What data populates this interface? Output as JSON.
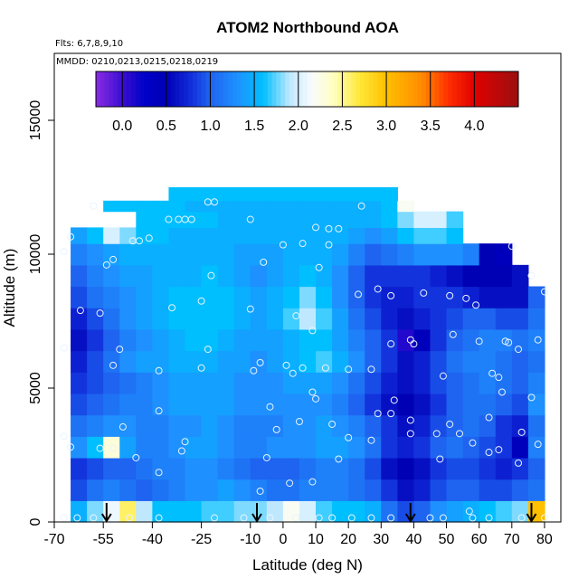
{
  "chart_data": {
    "type": "heatmap",
    "title": "ATOM2 Northbound AOA",
    "flights_label": "Flts: 6,7,8,9,10",
    "dates_label": "MMDD: 0210,0213,0215,0218,0219",
    "xlabel": "Latitude (deg N)",
    "ylabel": "Altitude (m)",
    "xlim": [
      -70,
      85
    ],
    "ylim": [
      0,
      17500
    ],
    "x_ticks": [
      -70,
      -55,
      -40,
      -25,
      -10,
      0,
      10,
      20,
      30,
      40,
      50,
      60,
      70,
      80
    ],
    "x_tick_labels": [
      "-70",
      "-55",
      "-40",
      "-25",
      "-10",
      "0",
      "10",
      "20",
      "30",
      "40",
      "50",
      "60",
      "70",
      "80"
    ],
    "y_ticks": [
      0,
      5000,
      10000,
      15000
    ],
    "y_tick_labels": [
      "0",
      "5000",
      "10000",
      "15000"
    ],
    "colorbar": {
      "min": -0.3,
      "max": 4.5,
      "ticks": [
        0.0,
        0.5,
        1.0,
        1.5,
        2.0,
        2.5,
        3.0,
        3.5,
        4.0
      ],
      "tick_labels": [
        "0.0",
        "0.5",
        "1.0",
        "1.5",
        "2.0",
        "2.5",
        "3.0",
        "3.5",
        "4.0"
      ],
      "stops": [
        {
          "v": -0.3,
          "color": "#8a2be2"
        },
        {
          "v": 0.0,
          "color": "#3a0fd0"
        },
        {
          "v": 0.25,
          "color": "#0000c8"
        },
        {
          "v": 0.5,
          "color": "#0000b4"
        },
        {
          "v": 0.75,
          "color": "#1028d8"
        },
        {
          "v": 1.0,
          "color": "#1e64f0"
        },
        {
          "v": 1.3,
          "color": "#1e90ff"
        },
        {
          "v": 1.6,
          "color": "#00bfff"
        },
        {
          "v": 1.9,
          "color": "#bfe8ff"
        },
        {
          "v": 2.15,
          "color": "#f8fbff"
        },
        {
          "v": 2.4,
          "color": "#ffffc0"
        },
        {
          "v": 2.7,
          "color": "#ffe838"
        },
        {
          "v": 3.0,
          "color": "#ffc000"
        },
        {
          "v": 3.4,
          "color": "#ff8c00"
        },
        {
          "v": 3.7,
          "color": "#ff3000"
        },
        {
          "v": 4.0,
          "color": "#e00000"
        },
        {
          "v": 4.5,
          "color": "#9a1010"
        }
      ]
    },
    "field": {
      "x_edges": [
        -65,
        -60,
        -55,
        -50,
        -45,
        -40,
        -35,
        -30,
        -25,
        -20,
        -15,
        -10,
        -5,
        0,
        5,
        10,
        15,
        20,
        25,
        30,
        35,
        40,
        45,
        50,
        55,
        60,
        65,
        70,
        75,
        80
      ],
      "rows": [
        {
          "y0": 0,
          "y1": 800,
          "v": [
            1.5,
            1.8,
            2.1,
            2.6,
            1.9,
            1.6,
            1.6,
            1.6,
            1.7,
            1.7,
            1.8,
            1.8,
            1.9,
            2.2,
            2.0,
            1.7,
            1.6,
            1.6,
            1.5,
            1.1,
            0.9,
            1.0,
            1.3,
            1.4,
            1.5,
            1.6,
            1.7,
            1.8,
            3.0
          ]
        },
        {
          "y0": 800,
          "y1": 1600,
          "v": [
            0.9,
            1.1,
            1.2,
            1.1,
            1.0,
            1.1,
            1.2,
            1.3,
            1.3,
            1.4,
            1.3,
            1.2,
            1.1,
            1.1,
            1.2,
            1.2,
            1.2,
            1.1,
            1.0,
            0.8,
            0.6,
            0.7,
            0.9,
            1.0,
            1.0,
            0.9,
            0.9,
            1.0,
            1.1
          ]
        },
        {
          "y0": 1600,
          "y1": 2400,
          "v": [
            0.8,
            0.9,
            1.0,
            1.0,
            1.1,
            1.2,
            1.2,
            1.3,
            1.3,
            1.2,
            1.1,
            1.0,
            1.0,
            1.0,
            1.1,
            1.2,
            1.2,
            1.1,
            0.9,
            0.6,
            0.5,
            0.6,
            0.8,
            0.9,
            0.9,
            0.8,
            0.7,
            0.8,
            1.0
          ]
        },
        {
          "y0": 2400,
          "y1": 3200,
          "v": [
            1.3,
            1.6,
            2.3,
            1.4,
            1.2,
            1.2,
            1.3,
            1.4,
            1.4,
            1.3,
            1.2,
            1.2,
            1.3,
            1.3,
            1.3,
            1.4,
            1.4,
            1.3,
            1.1,
            0.8,
            0.7,
            0.8,
            1.0,
            1.1,
            1.0,
            0.9,
            0.8,
            0.4,
            1.2
          ]
        },
        {
          "y0": 3200,
          "y1": 4000,
          "v": [
            1.1,
            1.2,
            1.3,
            1.3,
            1.2,
            1.2,
            1.3,
            1.3,
            1.4,
            1.3,
            1.2,
            1.2,
            1.2,
            1.3,
            1.3,
            1.4,
            1.3,
            1.2,
            1.0,
            0.8,
            0.6,
            0.7,
            0.9,
            1.0,
            1.1,
            1.0,
            0.8,
            0.7,
            1.1
          ]
        },
        {
          "y0": 4000,
          "y1": 4800,
          "v": [
            0.9,
            1.0,
            1.1,
            1.2,
            1.2,
            1.3,
            1.4,
            1.4,
            1.4,
            1.4,
            1.3,
            1.3,
            1.3,
            1.3,
            1.3,
            1.3,
            1.2,
            1.0,
            0.8,
            0.6,
            0.5,
            0.6,
            0.8,
            1.0,
            1.1,
            1.1,
            1.0,
            0.9,
            1.3
          ]
        },
        {
          "y0": 4800,
          "y1": 5600,
          "v": [
            0.8,
            0.9,
            1.0,
            1.1,
            1.2,
            1.3,
            1.4,
            1.4,
            1.4,
            1.4,
            1.3,
            1.3,
            1.3,
            1.4,
            1.4,
            1.4,
            1.3,
            1.1,
            0.9,
            0.7,
            0.6,
            0.7,
            0.9,
            1.0,
            1.1,
            1.2,
            1.1,
            1.0,
            1.2
          ]
        },
        {
          "y0": 5600,
          "y1": 6400,
          "v": [
            0.7,
            0.9,
            1.1,
            1.3,
            1.4,
            1.4,
            1.5,
            1.5,
            1.5,
            1.4,
            1.4,
            1.3,
            1.4,
            1.5,
            1.6,
            1.7,
            1.5,
            1.3,
            1.0,
            0.8,
            0.6,
            0.7,
            0.9,
            1.1,
            1.2,
            1.2,
            1.1,
            1.0,
            1.1
          ]
        },
        {
          "y0": 6400,
          "y1": 7200,
          "v": [
            0.6,
            0.8,
            1.0,
            1.2,
            1.3,
            1.4,
            1.5,
            1.6,
            1.6,
            1.5,
            1.4,
            1.4,
            1.4,
            1.5,
            1.6,
            1.6,
            1.4,
            1.2,
            1.0,
            0.8,
            0.1,
            0.4,
            0.8,
            1.0,
            1.1,
            1.2,
            1.2,
            1.1,
            1.2
          ]
        },
        {
          "y0": 7200,
          "y1": 8000,
          "v": [
            0.7,
            0.9,
            1.1,
            1.3,
            1.4,
            1.5,
            1.6,
            1.6,
            1.6,
            1.6,
            1.5,
            1.4,
            1.5,
            1.7,
            1.9,
            1.7,
            1.4,
            1.1,
            0.9,
            0.7,
            0.6,
            0.7,
            0.8,
            0.9,
            1.0,
            1.0,
            0.9,
            0.9,
            1.1
          ]
        },
        {
          "y0": 8000,
          "y1": 8800,
          "v": [
            0.9,
            1.1,
            1.2,
            1.3,
            1.4,
            1.5,
            1.6,
            1.6,
            1.6,
            1.6,
            1.5,
            1.4,
            1.5,
            1.6,
            1.8,
            1.6,
            1.3,
            1.0,
            0.8,
            0.7,
            0.7,
            0.8,
            0.8,
            0.8,
            0.7,
            0.6,
            0.6,
            0.6,
            1.0
          ]
        },
        {
          "y0": 8800,
          "y1": 9600,
          "v": [
            1.0,
            1.2,
            1.3,
            1.4,
            1.4,
            1.5,
            1.5,
            1.5,
            1.6,
            1.5,
            1.4,
            1.3,
            1.4,
            1.5,
            1.6,
            1.5,
            1.3,
            1.0,
            0.8,
            0.8,
            0.8,
            0.8,
            0.7,
            0.6,
            0.5,
            0.5,
            0.5,
            0.6,
            null
          ]
        },
        {
          "y0": 9600,
          "y1": 10400,
          "v": [
            1.2,
            1.3,
            1.4,
            1.5,
            1.5,
            1.5,
            1.5,
            1.5,
            1.5,
            1.5,
            1.4,
            1.4,
            1.4,
            1.5,
            1.5,
            1.5,
            1.4,
            1.2,
            1.0,
            1.1,
            1.2,
            1.3,
            1.3,
            1.3,
            1.2,
            0.5,
            0.4,
            null,
            null
          ]
        },
        {
          "y0": 10400,
          "y1": 11000,
          "v": [
            1.4,
            1.6,
            2.0,
            1.8,
            1.6,
            1.6,
            1.5,
            1.5,
            1.5,
            1.5,
            1.5,
            1.5,
            1.5,
            1.5,
            1.5,
            1.5,
            1.5,
            1.4,
            1.3,
            1.4,
            1.6,
            1.7,
            1.7,
            1.6,
            null,
            null,
            null,
            null,
            null
          ]
        },
        {
          "y0": 11000,
          "y1": 11600,
          "v": [
            null,
            null,
            null,
            null,
            1.6,
            1.6,
            1.6,
            1.6,
            1.6,
            1.5,
            1.5,
            1.5,
            1.5,
            1.5,
            1.5,
            1.5,
            1.5,
            1.5,
            1.5,
            1.6,
            1.8,
            2.0,
            2.0,
            1.7,
            null,
            null,
            null,
            null,
            null
          ]
        },
        {
          "y0": 11600,
          "y1": 12000,
          "v": [
            null,
            null,
            1.6,
            1.6,
            1.6,
            1.6,
            1.6,
            1.5,
            1.5,
            1.5,
            1.5,
            1.5,
            1.5,
            1.5,
            1.5,
            1.5,
            1.5,
            1.5,
            1.5,
            1.6,
            2.2,
            null,
            null,
            null,
            null,
            null,
            null,
            null,
            null
          ]
        },
        {
          "y0": 12000,
          "y1": 12500,
          "v": [
            null,
            null,
            null,
            null,
            null,
            null,
            1.6,
            1.6,
            1.6,
            1.6,
            1.6,
            1.6,
            1.6,
            1.6,
            1.6,
            1.6,
            1.6,
            1.6,
            1.6,
            1.6,
            null,
            null,
            null,
            null,
            null,
            null,
            null,
            null,
            null
          ]
        }
      ]
    },
    "points": [
      {
        "x": -67,
        "y": 10100
      },
      {
        "x": -65,
        "y": 10650
      },
      {
        "x": -58,
        "y": 11800
      },
      {
        "x": -54,
        "y": 9600
      },
      {
        "x": -52,
        "y": 9800
      },
      {
        "x": -46,
        "y": 10500
      },
      {
        "x": -44,
        "y": 10500
      },
      {
        "x": -41,
        "y": 10600
      },
      {
        "x": -35,
        "y": 11300
      },
      {
        "x": -32,
        "y": 11300
      },
      {
        "x": -30,
        "y": 11300
      },
      {
        "x": -28,
        "y": 11300
      },
      {
        "x": -23,
        "y": 11950
      },
      {
        "x": -21,
        "y": 11950
      },
      {
        "x": -22,
        "y": 9200
      },
      {
        "x": -10,
        "y": 11300
      },
      {
        "x": -6,
        "y": 9700
      },
      {
        "x": 0,
        "y": 10350
      },
      {
        "x": 6,
        "y": 10400
      },
      {
        "x": 10,
        "y": 11000
      },
      {
        "x": 14,
        "y": 10950
      },
      {
        "x": 17,
        "y": 10950
      },
      {
        "x": 14,
        "y": 10350
      },
      {
        "x": 11,
        "y": 9500
      },
      {
        "x": 24,
        "y": 11800
      },
      {
        "x": 29,
        "y": 8700
      },
      {
        "x": 33,
        "y": 8450
      },
      {
        "x": 23,
        "y": 8500
      },
      {
        "x": 43,
        "y": 8550
      },
      {
        "x": 51,
        "y": 8450
      },
      {
        "x": 56,
        "y": 8350
      },
      {
        "x": 59,
        "y": 8100
      },
      {
        "x": 70,
        "y": 10300
      },
      {
        "x": 76,
        "y": 9200
      },
      {
        "x": 80,
        "y": 8600
      },
      {
        "x": -62,
        "y": 7900
      },
      {
        "x": -56,
        "y": 7800
      },
      {
        "x": -34,
        "y": 8000
      },
      {
        "x": -25,
        "y": 8250
      },
      {
        "x": -10,
        "y": 7950
      },
      {
        "x": 4,
        "y": 7700
      },
      {
        "x": 9,
        "y": 7150
      },
      {
        "x": 33,
        "y": 6650
      },
      {
        "x": 39,
        "y": 6800
      },
      {
        "x": 40,
        "y": 6650
      },
      {
        "x": 52,
        "y": 7000
      },
      {
        "x": 60,
        "y": 6750
      },
      {
        "x": 68,
        "y": 6750
      },
      {
        "x": 69,
        "y": 6700
      },
      {
        "x": 72,
        "y": 6450
      },
      {
        "x": 78,
        "y": 6800
      },
      {
        "x": -67,
        "y": 6500
      },
      {
        "x": -50,
        "y": 6450
      },
      {
        "x": -23,
        "y": 6450
      },
      {
        "x": -38,
        "y": 5650
      },
      {
        "x": -52,
        "y": 5850
      },
      {
        "x": -25,
        "y": 5750
      },
      {
        "x": -9,
        "y": 5650
      },
      {
        "x": -7,
        "y": 5950
      },
      {
        "x": 1,
        "y": 5850
      },
      {
        "x": 3,
        "y": 5550
      },
      {
        "x": 6,
        "y": 5750
      },
      {
        "x": 13,
        "y": 5750
      },
      {
        "x": 20,
        "y": 5700
      },
      {
        "x": 27,
        "y": 5700
      },
      {
        "x": 49,
        "y": 5450
      },
      {
        "x": 66,
        "y": 5400
      },
      {
        "x": 64,
        "y": 5550
      },
      {
        "x": 67,
        "y": 4850
      },
      {
        "x": 76,
        "y": 4650
      },
      {
        "x": 9,
        "y": 4850
      },
      {
        "x": 10,
        "y": 4600
      },
      {
        "x": 34,
        "y": 4550
      },
      {
        "x": -38,
        "y": 4150
      },
      {
        "x": -4,
        "y": 4300
      },
      {
        "x": 5,
        "y": 3750
      },
      {
        "x": 15,
        "y": 3650
      },
      {
        "x": -2,
        "y": 3450
      },
      {
        "x": 29,
        "y": 4050
      },
      {
        "x": 33,
        "y": 4050
      },
      {
        "x": 39,
        "y": 3800
      },
      {
        "x": 51,
        "y": 3650
      },
      {
        "x": 63,
        "y": 3900
      },
      {
        "x": -67,
        "y": 3200
      },
      {
        "x": -65,
        "y": 2800
      },
      {
        "x": -56,
        "y": 2750
      },
      {
        "x": -52,
        "y": 2750
      },
      {
        "x": -49,
        "y": 3550
      },
      {
        "x": -31,
        "y": 2650
      },
      {
        "x": -30,
        "y": 3000
      },
      {
        "x": -5,
        "y": 2400
      },
      {
        "x": 20,
        "y": 3150
      },
      {
        "x": 27,
        "y": 3050
      },
      {
        "x": 39,
        "y": 3300
      },
      {
        "x": 47,
        "y": 3300
      },
      {
        "x": 54,
        "y": 3300
      },
      {
        "x": 58,
        "y": 2950
      },
      {
        "x": 66,
        "y": 2700
      },
      {
        "x": 73,
        "y": 3350
      },
      {
        "x": 78,
        "y": 2900
      },
      {
        "x": 72,
        "y": 2200
      },
      {
        "x": 63,
        "y": 2600
      },
      {
        "x": -45,
        "y": 2400
      },
      {
        "x": -38,
        "y": 1850
      },
      {
        "x": 9,
        "y": 1500
      },
      {
        "x": 17,
        "y": 2350
      },
      {
        "x": 48,
        "y": 2350
      },
      {
        "x": -7,
        "y": 1150
      },
      {
        "x": 2,
        "y": 1450
      },
      {
        "x": 57,
        "y": 400
      },
      {
        "x": -67,
        "y": 150
      },
      {
        "x": -63,
        "y": 150
      },
      {
        "x": -58,
        "y": 150
      },
      {
        "x": -47,
        "y": 150
      },
      {
        "x": -38,
        "y": 150
      },
      {
        "x": -21,
        "y": 150
      },
      {
        "x": -4,
        "y": 150
      },
      {
        "x": 11,
        "y": 150
      },
      {
        "x": 21,
        "y": 150
      },
      {
        "x": 27,
        "y": 150
      },
      {
        "x": 33,
        "y": 150
      },
      {
        "x": 45,
        "y": 150
      },
      {
        "x": 49,
        "y": 150
      },
      {
        "x": 63,
        "y": 150
      },
      {
        "x": 73,
        "y": 150
      },
      {
        "x": 80,
        "y": 150
      },
      {
        "x": -12,
        "y": 150
      },
      {
        "x": 4,
        "y": 150
      },
      {
        "x": 15,
        "y": 150
      },
      {
        "x": 58,
        "y": 150
      }
    ],
    "arrows_latitude": [
      -54,
      -8,
      39,
      76
    ]
  }
}
